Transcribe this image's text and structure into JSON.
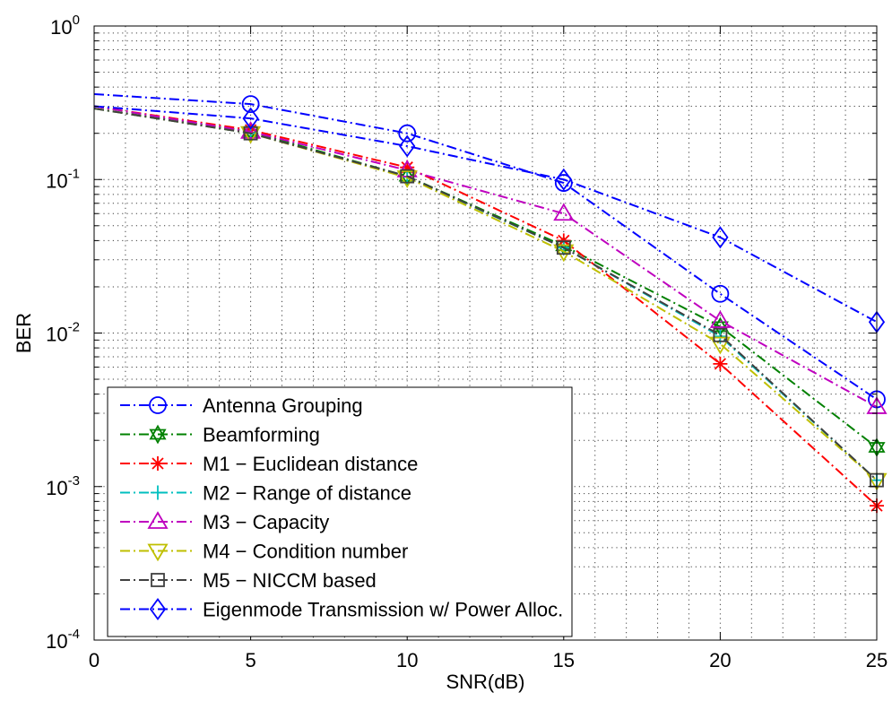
{
  "chart_data": {
    "type": "line",
    "xlabel": "SNR(dB)",
    "ylabel": "BER",
    "xlim": [
      0,
      25
    ],
    "ylim": [
      0.0001,
      1
    ],
    "yscale": "log",
    "grid": true,
    "legend_position": "bottom-left",
    "x_ticks": [
      0,
      5,
      10,
      15,
      20,
      25
    ],
    "x_tick_labels": [
      "0",
      "5",
      "10",
      "15",
      "20",
      "25"
    ],
    "y_ticks": [
      0.0001,
      0.001,
      0.01,
      0.1,
      1
    ],
    "y_tick_labels": [
      {
        "base": "10",
        "exp": "-4"
      },
      {
        "base": "10",
        "exp": "-3"
      },
      {
        "base": "10",
        "exp": "-2"
      },
      {
        "base": "10",
        "exp": "-1"
      },
      {
        "base": "10",
        "exp": "0"
      }
    ],
    "series": [
      {
        "name": "Antenna Grouping",
        "color": "#0000ff",
        "marker": "circle",
        "x": [
          0,
          5,
          10,
          15,
          20,
          25
        ],
        "y": [
          0.36,
          0.31,
          0.2,
          0.095,
          0.018,
          0.0037
        ]
      },
      {
        "name": "Beamforming",
        "color": "#008000",
        "marker": "hexagram",
        "x": [
          0,
          5,
          10,
          15,
          20,
          25
        ],
        "y": [
          0.29,
          0.205,
          0.105,
          0.037,
          0.011,
          0.0018
        ]
      },
      {
        "name": "M1 − Euclidean distance",
        "color": "#ff0000",
        "marker": "asterisk",
        "x": [
          0,
          5,
          10,
          15,
          20,
          25
        ],
        "y": [
          0.3,
          0.21,
          0.12,
          0.04,
          0.0063,
          0.00075
        ]
      },
      {
        "name": "M2 − Range of distance",
        "color": "#00bfbf",
        "marker": "plus",
        "x": [
          0,
          5,
          10,
          15,
          20,
          25
        ],
        "y": [
          0.29,
          0.2,
          0.104,
          0.036,
          0.0095,
          0.0011
        ]
      },
      {
        "name": "M3 − Capacity",
        "color": "#bf00bf",
        "marker": "triangle-up",
        "x": [
          0,
          5,
          10,
          15,
          20,
          25
        ],
        "y": [
          0.3,
          0.205,
          0.115,
          0.06,
          0.012,
          0.0033
        ]
      },
      {
        "name": "M4 − Condition number",
        "color": "#bfbf00",
        "marker": "triangle-down",
        "x": [
          0,
          5,
          10,
          15,
          20,
          25
        ],
        "y": [
          0.29,
          0.2,
          0.103,
          0.034,
          0.0085,
          0.0011
        ]
      },
      {
        "name": "M5 − NICCM based",
        "color": "#404040",
        "marker": "square",
        "x": [
          0,
          5,
          10,
          15,
          20,
          25
        ],
        "y": [
          0.29,
          0.2,
          0.105,
          0.036,
          0.0097,
          0.0011
        ]
      },
      {
        "name": "Eigenmode Transmission w/ Power Alloc.",
        "color": "#0000ff",
        "marker": "diamond",
        "x": [
          0,
          5,
          10,
          15,
          20,
          25
        ],
        "y": [
          0.3,
          0.25,
          0.165,
          0.1,
          0.042,
          0.0118
        ]
      }
    ]
  }
}
